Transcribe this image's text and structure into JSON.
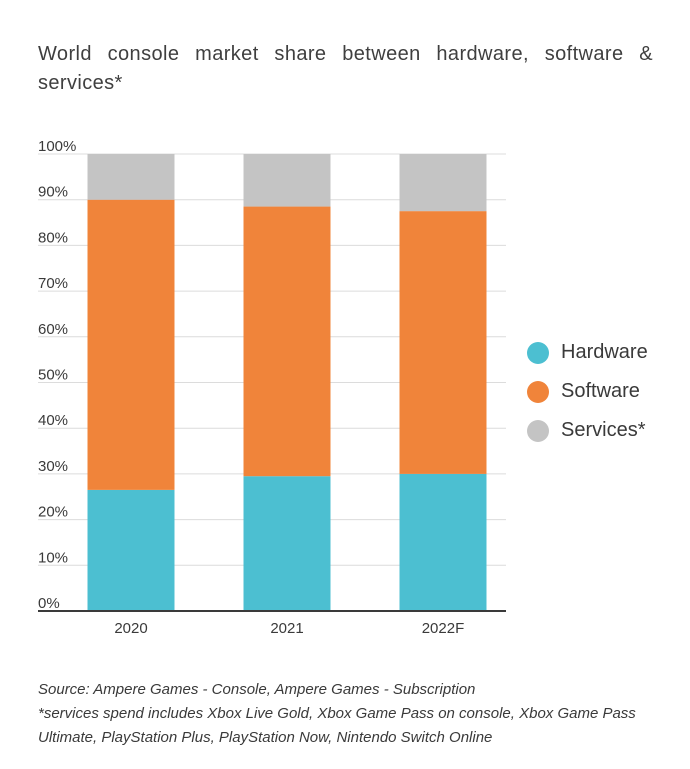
{
  "title": "World console market share between hardware, software & services*",
  "chart_data": {
    "type": "bar",
    "stacked": true,
    "categories": [
      "2020",
      "2021",
      "2022F"
    ],
    "series": [
      {
        "name": "Hardware",
        "values": [
          26.5,
          29.5,
          30
        ],
        "color": "#4cbfd1"
      },
      {
        "name": "Software",
        "values": [
          63.5,
          59,
          57.5
        ],
        "color": "#f0843a"
      },
      {
        "name": "Services*",
        "values": [
          10,
          11.5,
          12.5
        ],
        "color": "#c4c4c4"
      }
    ],
    "yticks": [
      "0%",
      "10%",
      "20%",
      "30%",
      "40%",
      "50%",
      "60%",
      "70%",
      "80%",
      "90%",
      "100%"
    ],
    "ylim": [
      0,
      100
    ],
    "grid": true,
    "legend": "right"
  },
  "footnote": {
    "source": "Source: Ampere Games - Console, Ampere Games - Subscription",
    "note": "*services spend includes Xbox Live Gold, Xbox Game Pass on console, Xbox Game Pass Ultimate, PlayStation Plus, PlayStation Now, Nintendo Switch Online"
  }
}
